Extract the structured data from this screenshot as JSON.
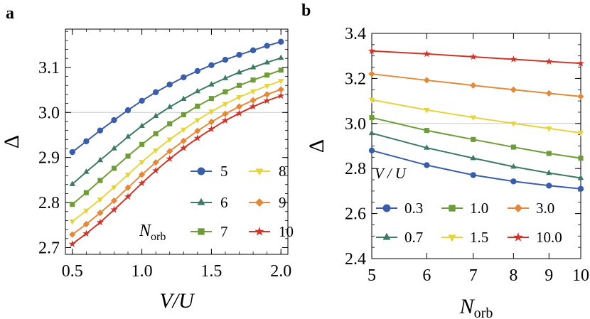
{
  "panels": [
    {
      "label": "a",
      "chart_data": {
        "type": "line",
        "xlabel": "V/U",
        "ylabel": "Δ",
        "xlim": [
          0.45,
          2.05
        ],
        "ylim": [
          2.685,
          3.185
        ],
        "xticks": [
          "0.5",
          "1.0",
          "1.5",
          "2.0"
        ],
        "yticks": [
          "2.7",
          "2.8",
          "2.9",
          "3.0",
          "3.1"
        ],
        "reference_line_y": 3.0,
        "legend_title": "N_orb",
        "legend_placement": "bottom-right",
        "x": [
          0.5,
          0.6,
          0.7,
          0.8,
          0.9,
          1.0,
          1.1,
          1.2,
          1.3,
          1.4,
          1.5,
          1.6,
          1.7,
          1.8,
          1.9,
          2.0
        ],
        "series": [
          {
            "name": "5",
            "color": "#3A5DA8",
            "marker": "circle",
            "values": [
              2.912,
              2.936,
              2.96,
              2.983,
              3.005,
              3.026,
              3.045,
              3.062,
              3.078,
              3.092,
              3.105,
              3.117,
              3.128,
              3.138,
              3.148,
              3.157
            ]
          },
          {
            "name": "6",
            "color": "#3E7A63",
            "marker": "triangle-up",
            "values": [
              2.841,
              2.868,
              2.894,
              2.92,
              2.946,
              2.97,
              2.992,
              3.012,
              3.03,
              3.047,
              3.062,
              3.076,
              3.089,
              3.1,
              3.111,
              3.121
            ]
          },
          {
            "name": "7",
            "color": "#6E9C3A",
            "marker": "square",
            "values": [
              2.796,
              2.822,
              2.849,
              2.876,
              2.903,
              2.929,
              2.953,
              2.975,
              2.995,
              3.014,
              3.031,
              3.046,
              3.06,
              3.072,
              3.083,
              3.094
            ]
          },
          {
            "name": "8",
            "color": "#E5D33F",
            "marker": "triangle-down",
            "values": [
              2.758,
              2.782,
              2.807,
              2.834,
              2.862,
              2.89,
              2.916,
              2.94,
              2.962,
              2.983,
              3.002,
              3.019,
              3.034,
              3.047,
              3.059,
              3.07
            ]
          },
          {
            "name": "9",
            "color": "#E08A3C",
            "marker": "diamond",
            "values": [
              2.729,
              2.752,
              2.777,
              2.804,
              2.833,
              2.862,
              2.889,
              2.914,
              2.937,
              2.959,
              2.979,
              2.997,
              3.013,
              3.027,
              3.04,
              3.051
            ]
          },
          {
            "name": "10",
            "color": "#C8372D",
            "marker": "star",
            "values": [
              2.708,
              2.731,
              2.756,
              2.784,
              2.813,
              2.843,
              2.871,
              2.897,
              2.921,
              2.943,
              2.963,
              2.982,
              2.998,
              3.013,
              3.026,
              3.037
            ]
          }
        ]
      }
    },
    {
      "label": "b",
      "chart_data": {
        "type": "line",
        "xlabel": "N_orb",
        "ylabel": "Δ",
        "xscale": "log",
        "xlim": [
          5,
          10
        ],
        "ylim": [
          2.4,
          3.4
        ],
        "xticks": [
          "5",
          "6",
          "7",
          "8",
          "9",
          "10"
        ],
        "yticks": [
          "2.4",
          "2.6",
          "2.8",
          "3.0",
          "3.2",
          "3.4"
        ],
        "reference_line_y": 3.0,
        "legend_title": "V / U",
        "legend_placement": "bottom",
        "x": [
          5,
          6,
          7,
          8,
          9,
          10
        ],
        "series": [
          {
            "name": "0.3",
            "color": "#3A5DA8",
            "marker": "circle",
            "values": [
              2.88,
              2.815,
              2.771,
              2.743,
              2.724,
              2.71
            ]
          },
          {
            "name": "0.7",
            "color": "#3E7A63",
            "marker": "triangle-up",
            "values": [
              2.957,
              2.892,
              2.846,
              2.808,
              2.78,
              2.758
            ]
          },
          {
            "name": "1.0",
            "color": "#6E9C3A",
            "marker": "square",
            "values": [
              3.026,
              2.969,
              2.929,
              2.895,
              2.867,
              2.846
            ]
          },
          {
            "name": "1.5",
            "color": "#E5D33F",
            "marker": "triangle-down",
            "values": [
              3.105,
              3.06,
              3.027,
              3.0,
              2.978,
              2.958
            ]
          },
          {
            "name": "3.0",
            "color": "#E08A3C",
            "marker": "diamond",
            "values": [
              3.22,
              3.192,
              3.169,
              3.15,
              3.134,
              3.12
            ]
          },
          {
            "name": "10.0",
            "color": "#C8372D",
            "marker": "star",
            "values": [
              3.322,
              3.309,
              3.296,
              3.285,
              3.275,
              3.267
            ]
          }
        ]
      }
    }
  ]
}
